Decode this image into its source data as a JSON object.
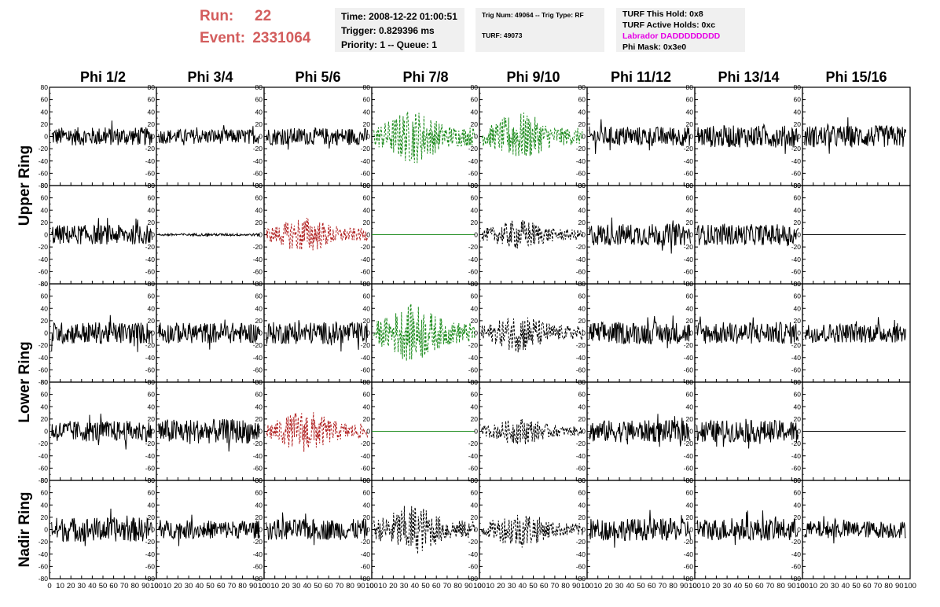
{
  "header": {
    "run_label": "Run:",
    "run_value": "22",
    "event_label": "Event:",
    "event_value": "2331064"
  },
  "info_box_1": {
    "time": "Time: 2008-12-22 01:00:51",
    "trigger": "Trigger: 0.829396 ms",
    "priority": "Priority: 1 -- Queue: 1"
  },
  "info_box_2": {
    "trig": "Trig Num: 49064 -- Trig Type: RF",
    "turf": "TURF: 49073"
  },
  "info_box_3": {
    "this_hold": "TURF This Hold: 0x8",
    "active_holds": "TURF Active Holds: 0xc",
    "labrador": "Labrador DADDDDDDDD",
    "phi_mask": "Phi Mask: 0x3e0"
  },
  "colors": {
    "run_text": "#d35d5d",
    "labrador_text": "#e600e6",
    "trace_default": "#000000",
    "trace_green": "#1a8a1a",
    "trace_red": "#b22222",
    "info_box_bg": "#f0f0f0"
  },
  "chart_data": {
    "type": "line",
    "columns": [
      "Phi 1/2",
      "Phi 3/4",
      "Phi 5/6",
      "Phi 7/8",
      "Phi 9/10",
      "Phi 11/12",
      "Phi 13/14",
      "Phi 15/16"
    ],
    "row_groups": [
      {
        "label": "Upper Ring",
        "rows": [
          0,
          1
        ]
      },
      {
        "label": "Lower Ring",
        "rows": [
          2,
          3
        ]
      },
      {
        "label": "Nadir Ring",
        "rows": [
          4
        ]
      }
    ],
    "ylim": [
      -80,
      80
    ],
    "yticks": [
      80,
      60,
      40,
      20,
      0,
      -20,
      -40,
      -60,
      -80
    ],
    "xlim": [
      0,
      100
    ],
    "xticks": [
      0,
      10,
      20,
      30,
      40,
      50,
      60,
      70,
      80,
      90,
      100
    ],
    "traces": [
      [
        {
          "style": "solid",
          "color": "black",
          "amplitude": 15
        },
        {
          "style": "solid",
          "color": "black",
          "amplitude": 12
        },
        {
          "style": "solid",
          "color": "black",
          "amplitude": 14
        },
        {
          "style": "dashed",
          "color": "green",
          "amplitude": 45,
          "burst": true
        },
        {
          "style": "dashed",
          "color": "green",
          "amplitude": 40,
          "burst": true
        },
        {
          "style": "solid",
          "color": "black",
          "amplitude": 16
        },
        {
          "style": "solid",
          "color": "black",
          "amplitude": 18
        },
        {
          "style": "solid",
          "color": "black",
          "amplitude": 18
        }
      ],
      [
        {
          "style": "solid",
          "color": "black",
          "amplitude": 16
        },
        {
          "style": "solid",
          "color": "black",
          "amplitude": 2
        },
        {
          "style": "dashed",
          "color": "red",
          "amplitude": 30,
          "burst": true
        },
        {
          "style": "flat",
          "color": "green",
          "amplitude": 0
        },
        {
          "style": "dashed",
          "color": "black",
          "amplitude": 25,
          "burst": true
        },
        {
          "style": "solid",
          "color": "black",
          "amplitude": 18
        },
        {
          "style": "solid",
          "color": "black",
          "amplitude": 17
        },
        {
          "style": "flat",
          "color": "black",
          "amplitude": 0
        }
      ],
      [
        {
          "style": "solid",
          "color": "black",
          "amplitude": 18
        },
        {
          "style": "solid",
          "color": "black",
          "amplitude": 17
        },
        {
          "style": "solid",
          "color": "black",
          "amplitude": 18
        },
        {
          "style": "dashed",
          "color": "green",
          "amplitude": 48,
          "burst": true
        },
        {
          "style": "dashed",
          "color": "black",
          "amplitude": 32,
          "burst": true
        },
        {
          "style": "solid",
          "color": "black",
          "amplitude": 18
        },
        {
          "style": "solid",
          "color": "black",
          "amplitude": 18
        },
        {
          "style": "solid",
          "color": "black",
          "amplitude": 16
        }
      ],
      [
        {
          "style": "solid",
          "color": "black",
          "amplitude": 17
        },
        {
          "style": "solid",
          "color": "black",
          "amplitude": 20
        },
        {
          "style": "dashed",
          "color": "red",
          "amplitude": 35,
          "burst": true
        },
        {
          "style": "flat",
          "color": "green",
          "amplitude": 0
        },
        {
          "style": "dashed",
          "color": "black",
          "amplitude": 22,
          "burst": true
        },
        {
          "style": "solid",
          "color": "black",
          "amplitude": 18
        },
        {
          "style": "solid",
          "color": "black",
          "amplitude": 18
        },
        {
          "style": "flat",
          "color": "black",
          "amplitude": 0
        }
      ],
      [
        {
          "style": "solid",
          "color": "black",
          "amplitude": 20
        },
        {
          "style": "solid",
          "color": "black",
          "amplitude": 15
        },
        {
          "style": "solid",
          "color": "black",
          "amplitude": 17
        },
        {
          "style": "dashed",
          "color": "black",
          "amplitude": 42,
          "burst": true
        },
        {
          "style": "dashed",
          "color": "black",
          "amplitude": 30,
          "burst": true
        },
        {
          "style": "solid",
          "color": "black",
          "amplitude": 18
        },
        {
          "style": "solid",
          "color": "black",
          "amplitude": 18
        },
        {
          "style": "solid",
          "color": "black",
          "amplitude": 14
        }
      ]
    ]
  }
}
